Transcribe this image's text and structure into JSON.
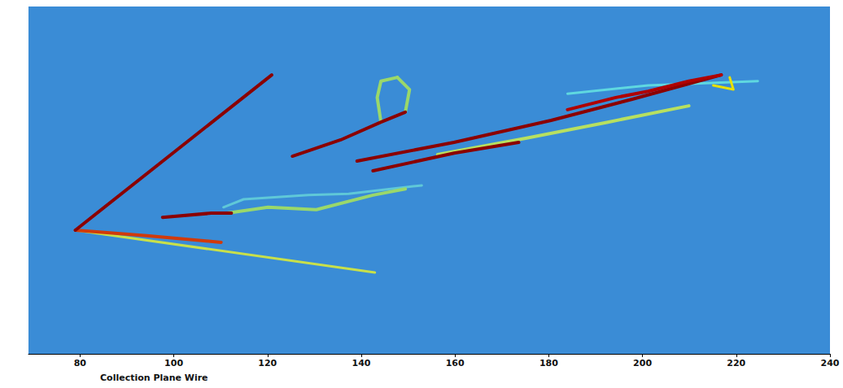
{
  "chart_data": {
    "type": "line",
    "xlabel": "Collection Plane Wire",
    "xlim": [
      69,
      240
    ],
    "xticks": [
      80,
      100,
      120,
      140,
      160,
      180,
      200,
      220,
      240
    ],
    "ylim": [
      0,
      100
    ],
    "tick_labels": "x",
    "grid": false,
    "series": [
      {
        "color": "#c8e04a",
        "x": [
          79.0,
          142.9
        ],
        "values": [
          35.6,
          23.4
        ]
      },
      {
        "color": "#5fc8d8",
        "x": [
          110.6,
          114.9,
          128.7,
          137.3,
          152.9
        ],
        "values": [
          42.2,
          44.5,
          45.7,
          46.1,
          48.5
        ]
      },
      {
        "color": "#9ad86a",
        "x": [
          111.4,
          120.1,
          130.4,
          142.5,
          149.4
        ],
        "values": [
          40.5,
          42.2,
          41.5,
          45.7,
          47.5
        ]
      },
      {
        "color": "#9ad86a",
        "x": [
          144.2,
          143.4,
          144.2,
          147.7
        ],
        "values": [
          66.7,
          73.8,
          78.5,
          79.6
        ]
      },
      {
        "color": "#9ad86a",
        "x": [
          149.4,
          150.3,
          147.7
        ],
        "values": [
          69.6,
          76.1,
          79.6
        ]
      },
      {
        "color": "#b7e060",
        "x": [
          156.3,
          175.3,
          192.6,
          209.9
        ],
        "values": [
          57.4,
          62.1,
          66.7,
          71.4
        ]
      },
      {
        "color": "#5fd8e0",
        "x": [
          184.0,
          201.2,
          224.6
        ],
        "values": [
          74.9,
          77.3,
          78.5
        ]
      },
      {
        "color": "#e8e000",
        "x": [
          215.1,
          219.4,
          218.6
        ],
        "values": [
          77.3,
          76.1,
          79.6
        ]
      },
      {
        "color": "#d13a0a",
        "x": [
          79.0,
          94.2,
          110.1
        ],
        "values": [
          35.6,
          34.0,
          32.1
        ]
      },
      {
        "color": "#8b0000",
        "x": [
          120.9,
          79.0
        ],
        "values": [
          80.3,
          35.6
        ]
      },
      {
        "color": "#8b0000",
        "x": [
          97.6,
          108.0,
          112.3
        ],
        "values": [
          39.3,
          40.5,
          40.5
        ]
      },
      {
        "color": "#8b0000",
        "x": [
          125.3,
          135.6,
          144.2,
          149.4
        ],
        "values": [
          56.9,
          61.6,
          66.7,
          69.6
        ]
      },
      {
        "color": "#8b0000",
        "x": [
          139.1,
          159.8,
          180.5,
          197.8,
          216.8
        ],
        "values": [
          55.5,
          60.9,
          67.2,
          73.3,
          80.3
        ]
      },
      {
        "color": "#b00000",
        "x": [
          184.0,
          194.3,
          201.2,
          209.9,
          216.8
        ],
        "values": [
          70.3,
          73.8,
          75.6,
          78.5,
          80.3
        ]
      },
      {
        "color": "#8b0000",
        "x": [
          142.5,
          159.8,
          173.6
        ],
        "values": [
          52.7,
          57.8,
          60.9
        ]
      }
    ]
  }
}
